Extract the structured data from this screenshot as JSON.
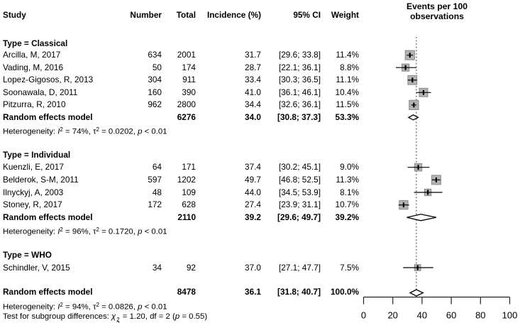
{
  "columns": {
    "study": "Study",
    "number": "Number",
    "total": "Total",
    "incidence": "Incidence (%)",
    "ci": "95% CI",
    "weight": "Weight",
    "plot_header_line1": "Events per 100",
    "plot_header_line2": "observations"
  },
  "colors": {
    "square_fill": "#b3b3b3",
    "square_border": "#8a8a8a",
    "ci_line": "#000000",
    "diamond_stroke": "#000000",
    "reference_line": "#444444",
    "axis": "#222222",
    "text": "#000000"
  },
  "chart_data": {
    "type": "forest",
    "title": "Events per 100 observations",
    "xlabel": "Events per 100 observations",
    "xlim": [
      0,
      100
    ],
    "x_ticks": [
      0,
      20,
      40,
      60,
      80,
      100
    ],
    "reference_line": 36.1,
    "groups": [
      {
        "label": "Type = Classical",
        "studies": [
          {
            "name": "Arcilla, M, 2017",
            "number": "634",
            "total": "2001",
            "incidence": "31.7",
            "est": 31.7,
            "lo": 29.6,
            "hi": 33.8,
            "ci": "[29.6; 33.8]",
            "weight": "11.4%",
            "w": 11.4
          },
          {
            "name": "Vading, M, 2016",
            "number": "50",
            "total": "174",
            "incidence": "28.7",
            "est": 28.7,
            "lo": 22.1,
            "hi": 36.1,
            "ci": "[22.1; 36.1]",
            "weight": "8.8%",
            "w": 8.8
          },
          {
            "name": "Lopez-Gigosos, R, 2013",
            "number": "304",
            "total": "911",
            "incidence": "33.4",
            "est": 33.4,
            "lo": 30.3,
            "hi": 36.5,
            "ci": "[30.3; 36.5]",
            "weight": "11.1%",
            "w": 11.1
          },
          {
            "name": "Soonawala, D, 2011",
            "number": "160",
            "total": "390",
            "incidence": "41.0",
            "est": 41.0,
            "lo": 36.1,
            "hi": 46.1,
            "ci": "[36.1; 46.1]",
            "weight": "10.4%",
            "w": 10.4
          },
          {
            "name": "Pitzurra, R, 2010",
            "number": "962",
            "total": "2800",
            "incidence": "34.4",
            "est": 34.4,
            "lo": 32.6,
            "hi": 36.1,
            "ci": "[32.6; 36.1]",
            "weight": "11.5%",
            "w": 11.5
          }
        ],
        "summary": {
          "name": "Random effects model",
          "total": "6276",
          "incidence": "34.0",
          "est": 34.0,
          "lo": 30.8,
          "hi": 37.3,
          "ci": "[30.8; 37.3]",
          "weight": "53.3%"
        },
        "heterogeneity": {
          "i2": "74%",
          "tau2": "0.0202",
          "p": "< 0.01"
        }
      },
      {
        "label": "Type = Individual",
        "studies": [
          {
            "name": "Kuenzli, E, 2017",
            "number": "64",
            "total": "171",
            "incidence": "37.4",
            "est": 37.4,
            "lo": 30.2,
            "hi": 45.1,
            "ci": "[30.2; 45.1]",
            "weight": "9.0%",
            "w": 9.0
          },
          {
            "name": "Belderok, S-M, 2011",
            "number": "597",
            "total": "1202",
            "incidence": "49.7",
            "est": 49.7,
            "lo": 46.8,
            "hi": 52.5,
            "ci": "[46.8; 52.5]",
            "weight": "11.3%",
            "w": 11.3
          },
          {
            "name": "Ilnyckyj, A, 2003",
            "number": "48",
            "total": "109",
            "incidence": "44.0",
            "est": 44.0,
            "lo": 34.5,
            "hi": 53.9,
            "ci": "[34.5; 53.9]",
            "weight": "8.1%",
            "w": 8.1
          },
          {
            "name": "Stoney, R, 2017",
            "number": "172",
            "total": "628",
            "incidence": "27.4",
            "est": 27.4,
            "lo": 23.9,
            "hi": 31.1,
            "ci": "[23.9; 31.1]",
            "weight": "10.7%",
            "w": 10.7
          }
        ],
        "summary": {
          "name": "Random effects model",
          "total": "2110",
          "incidence": "39.2",
          "est": 39.2,
          "lo": 29.6,
          "hi": 49.7,
          "ci": "[29.6; 49.7]",
          "weight": "39.2%"
        },
        "heterogeneity": {
          "i2": "96%",
          "tau2": "0.1720",
          "p": "< 0.01"
        }
      },
      {
        "label": "Type = WHO",
        "studies": [
          {
            "name": "Schindler, V, 2015",
            "number": "34",
            "total": "92",
            "incidence": "37.0",
            "est": 37.0,
            "lo": 27.1,
            "hi": 47.7,
            "ci": "[27.1; 47.7]",
            "weight": "7.5%",
            "w": 7.5
          }
        ],
        "summary": null,
        "heterogeneity": null
      }
    ],
    "overall": {
      "name": "Random effects model",
      "total": "8478",
      "incidence": "36.1",
      "est": 36.1,
      "lo": 31.8,
      "hi": 40.7,
      "ci": "[31.8; 40.7]",
      "weight": "100.0%",
      "heterogeneity": {
        "i2": "94%",
        "tau2": "0.0826",
        "p": "< 0.01"
      }
    },
    "subgroup_test": {
      "label": "Test for subgroup differences:",
      "statistic": "1.20",
      "df": "2",
      "p": "0.55"
    }
  }
}
